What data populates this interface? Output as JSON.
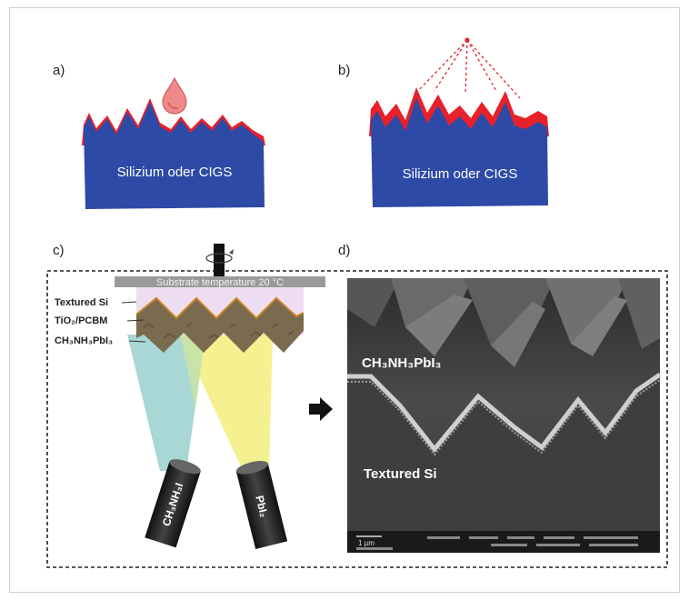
{
  "panels": {
    "a": {
      "label": "a)",
      "substrate_text": "Silizium oder CIGS"
    },
    "b": {
      "label": "b)",
      "substrate_text": "Silizium oder CIGS"
    },
    "c": {
      "label": "c)",
      "substrate_temperature": "Substrate temperature 20 °C",
      "layers": [
        "Textured Si",
        "TiO₂/PCBM",
        "CH₃NH₃PbI₃"
      ],
      "source_left": "CH₃NH₃I",
      "source_right": "PbI₂"
    },
    "d": {
      "label": "d)",
      "material_top": "CH₃NH₃PbI₃",
      "material_bottom": "Textured Si",
      "scale_bar": "1 µm"
    }
  },
  "colors": {
    "silicon_blue": "#2d4aa6",
    "perovskite_red": "#e8202a",
    "droplet": "#ef8a8a",
    "cone_left": "#9fd3d0",
    "cone_right": "#f3ef7c",
    "substrate_pink": "#eedcf0",
    "grain_brown": "#7a6a4f"
  }
}
